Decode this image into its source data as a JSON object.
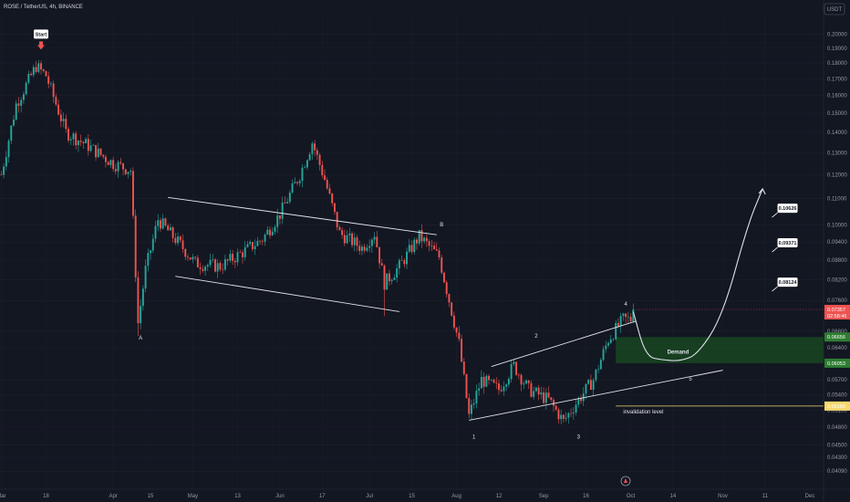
{
  "header": {
    "symbol_line": "ROSE / TetherUS, 4h, BINANCE"
  },
  "currency_button": "USDT",
  "colors": {
    "background": "#131722",
    "up": "#26a69a",
    "down": "#ef5350",
    "accent_white": "#e0e3eb",
    "demand_zone": "#1b5e20",
    "invalidation": "#f5d76e"
  },
  "chart_data": {
    "type": "candlestick",
    "yscale": "log",
    "ylim": [
      0.0383,
      0.2132
    ],
    "y_ticks": [
      "0.20000",
      "0.19000",
      "0.18000",
      "0.17000",
      "0.16000",
      "0.15000",
      "0.14000",
      "0.13000",
      "0.12000",
      "0.11000",
      "0.10000",
      "0.09400",
      "0.08800",
      "0.08200",
      "0.07600",
      "0.06800",
      "0.06400",
      "0.05700",
      "0.05400",
      "0.05100",
      "0.04800",
      "0.04500",
      "0.04300",
      "0.04090"
    ],
    "x_ticks": [
      "Mar",
      "18",
      "Apr",
      "15",
      "May",
      "13",
      "Jun",
      "17",
      "Jul",
      "15",
      "Aug",
      "12",
      "Sep",
      "16",
      "Oct",
      "14",
      "Nov",
      "11",
      "Dec"
    ],
    "x_tick_index": [
      0,
      18,
      45,
      60,
      77,
      95,
      112,
      129,
      148,
      165,
      183,
      200,
      218,
      235,
      253,
      270,
      290,
      307,
      325
    ],
    "price_path": [
      [
        0,
        0.12
      ],
      [
        6,
        0.155
      ],
      [
        14,
        0.178
      ],
      [
        18,
        0.172
      ],
      [
        26,
        0.14
      ],
      [
        34,
        0.134
      ],
      [
        45,
        0.125
      ],
      [
        52,
        0.122
      ],
      [
        55,
        0.07
      ],
      [
        58,
        0.085
      ],
      [
        63,
        0.102
      ],
      [
        72,
        0.093
      ],
      [
        78,
        0.087
      ],
      [
        88,
        0.086
      ],
      [
        96,
        0.09
      ],
      [
        105,
        0.095
      ],
      [
        112,
        0.104
      ],
      [
        120,
        0.12
      ],
      [
        125,
        0.135
      ],
      [
        130,
        0.118
      ],
      [
        136,
        0.097
      ],
      [
        145,
        0.092
      ],
      [
        150,
        0.097
      ],
      [
        154,
        0.081
      ],
      [
        160,
        0.086
      ],
      [
        168,
        0.096
      ],
      [
        176,
        0.089
      ],
      [
        184,
        0.065
      ],
      [
        188,
        0.05
      ],
      [
        193,
        0.057
      ],
      [
        200,
        0.055
      ],
      [
        206,
        0.06
      ],
      [
        212,
        0.055
      ],
      [
        220,
        0.053
      ],
      [
        226,
        0.049
      ],
      [
        232,
        0.053
      ],
      [
        238,
        0.057
      ],
      [
        244,
        0.066
      ],
      [
        250,
        0.071
      ]
    ],
    "current_price": "0.07357",
    "countdown": "02:58:46",
    "demand_zone_prices": [
      "0.06656",
      "0.06053"
    ],
    "demand_zone_range": [
      0.06053,
      0.06656
    ],
    "invalidation_price": "0.05180",
    "targets": [
      "0.10626",
      "0.09371",
      "0.08124"
    ],
    "labels": {
      "start": "Start",
      "A": "A",
      "B": "B",
      "w1": "1",
      "w2": "2",
      "w3": "3",
      "w4": "4",
      "w5": "5",
      "demand": "Demand",
      "invalidation": "invalidation level"
    },
    "channel_upper": [
      [
        67,
        0.1105
      ],
      [
        175,
        0.0965
      ]
    ],
    "channel_lower": [
      [
        70,
        0.083
      ],
      [
        160,
        0.073
      ]
    ],
    "wedge_upper": [
      [
        197,
        0.0598
      ],
      [
        255,
        0.0705
      ]
    ],
    "wedge_lower": [
      [
        188,
        0.0492
      ],
      [
        290,
        0.059
      ]
    ],
    "projection_path": [
      [
        254,
        0.073
      ],
      [
        259,
        0.062
      ],
      [
        266,
        0.0612
      ],
      [
        273,
        0.061
      ],
      [
        280,
        0.0625
      ],
      [
        290,
        0.072
      ],
      [
        300,
        0.1
      ],
      [
        306,
        0.114
      ]
    ],
    "current_price_index": 254,
    "ab_label_positions": {
      "start": [
        16,
        0.198
      ],
      "A": [
        56,
        0.066
      ],
      "B": [
        177,
        0.0995
      ]
    },
    "wave_label_positions": {
      "w1": [
        190,
        0.046
      ],
      "w2": [
        215,
        0.0664
      ],
      "w3": [
        232,
        0.046
      ],
      "w4": [
        251,
        0.0745
      ],
      "w5": [
        277,
        0.0568
      ]
    },
    "target_anchor_index": 312
  }
}
